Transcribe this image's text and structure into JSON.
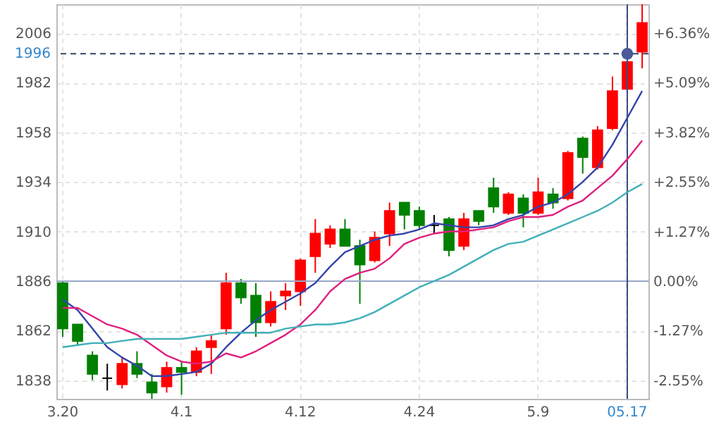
{
  "chart_data": {
    "type": "candlestick",
    "categories": [
      "3.20",
      null,
      null,
      null,
      null,
      null,
      null,
      null,
      "4.1",
      null,
      null,
      null,
      null,
      null,
      null,
      null,
      "4.12",
      null,
      null,
      null,
      null,
      null,
      null,
      null,
      "4.24",
      null,
      null,
      null,
      null,
      null,
      null,
      null,
      "5.9",
      null,
      null,
      null,
      null,
      null,
      "05.17",
      null
    ],
    "ylim": [
      1829,
      2020
    ],
    "yticks": [
      1838,
      1862,
      1886,
      1910,
      1934,
      1958,
      1982,
      2006
    ],
    "y2lim": [
      -3.02,
      7.1
    ],
    "y2ticks": [
      {
        "value": -2.55,
        "label": "-2.55%"
      },
      {
        "value": -1.27,
        "label": "-1.27%"
      },
      {
        "value": 0,
        "label": "0.00%"
      },
      {
        "value": 1.27,
        "label": "+1.27%"
      },
      {
        "value": 2.55,
        "label": "+2.55%"
      },
      {
        "value": 3.82,
        "label": "+3.82%"
      },
      {
        "value": 5.09,
        "label": "+5.09%"
      },
      {
        "value": 6.36,
        "label": "+6.36%"
      }
    ],
    "grid": true,
    "ref_lines": [
      {
        "axis": "y",
        "value": 1886,
        "color": "#99a8c8",
        "line_style": "solid"
      },
      {
        "axis": "y",
        "value": 1996,
        "label": "1996",
        "color": "#334466",
        "line_style": "dashed"
      },
      {
        "axis": "x",
        "value": "05.17",
        "color": "#3a4a88",
        "line_style": "solid"
      }
    ],
    "series": [
      {
        "type": "candlestick",
        "ohlc": [
          [
            1885,
            1886,
            1859,
            1863
          ],
          [
            1865,
            1865,
            1855,
            1857
          ],
          [
            1850,
            1852,
            1838,
            1841
          ],
          [
            1839,
            1846,
            1833,
            1839
          ],
          [
            1836,
            1849,
            1834,
            1846
          ],
          [
            1846,
            1852,
            1839,
            1841
          ],
          [
            1837,
            1841,
            1829,
            1832
          ],
          [
            1835,
            1847,
            1832,
            1844
          ],
          [
            1844,
            1847,
            1831,
            1842
          ],
          [
            1842,
            1854,
            1840,
            1852
          ],
          [
            1854,
            1860,
            1841,
            1857
          ],
          [
            1863,
            1890,
            1860,
            1885
          ],
          [
            1885,
            1887,
            1875,
            1878
          ],
          [
            1879,
            1885,
            1859,
            1866
          ],
          [
            1866,
            1881,
            1864,
            1876
          ],
          [
            1879,
            1885,
            1872,
            1881
          ],
          [
            1881,
            1897,
            1874,
            1896
          ],
          [
            1898,
            1916,
            1890,
            1909
          ],
          [
            1904,
            1913,
            1902,
            1911
          ],
          [
            1911,
            1916,
            1903,
            1903
          ],
          [
            1903,
            1906,
            1875,
            1894
          ],
          [
            1896,
            1910,
            1895,
            1907
          ],
          [
            1909,
            1924,
            1903,
            1920
          ],
          [
            1924,
            1924,
            1911,
            1918
          ],
          [
            1920,
            1922,
            1911,
            1913
          ],
          [
            1913,
            1918,
            1909,
            1913
          ],
          [
            1916,
            1917,
            1898,
            1901
          ],
          [
            1903,
            1919,
            1901,
            1916
          ],
          [
            1920,
            1920,
            1913,
            1915
          ],
          [
            1931,
            1936,
            1919,
            1922
          ],
          [
            1919,
            1929,
            1918,
            1928
          ],
          [
            1926,
            1928,
            1912,
            1919
          ],
          [
            1919,
            1936,
            1918,
            1929
          ],
          [
            1928,
            1931,
            1921,
            1924
          ],
          [
            1926,
            1949,
            1925,
            1948
          ],
          [
            1955,
            1956,
            1938,
            1946
          ],
          [
            1941,
            1961,
            1940,
            1959
          ],
          [
            1960,
            1985,
            1959,
            1978
          ],
          [
            1979,
            1994,
            1979,
            1992
          ],
          [
            1997,
            2020,
            1989,
            2011
          ]
        ],
        "colors": [
          "#008000",
          "#008000",
          "#008000",
          "#000000",
          "#ff0000",
          "#008000",
          "#008000",
          "#ff0000",
          "#008000",
          "#ff0000",
          "#ff0000",
          "#ff0000",
          "#008000",
          "#008000",
          "#ff0000",
          "#ff0000",
          "#ff0000",
          "#ff0000",
          "#ff0000",
          "#008000",
          "#008000",
          "#ff0000",
          "#ff0000",
          "#008000",
          "#008000",
          "#000000",
          "#008000",
          "#ff0000",
          "#008000",
          "#008000",
          "#ff0000",
          "#008000",
          "#ff0000",
          "#008000",
          "#ff0000",
          "#008000",
          "#ff0000",
          "#ff0000",
          "#ff0000",
          "#ff0000"
        ]
      },
      {
        "type": "line",
        "color": "#3344aa",
        "values": [
          1877,
          1872,
          1863,
          1854,
          1849,
          1845,
          1840,
          1840,
          1841,
          1842,
          1846,
          1854,
          1861,
          1867,
          1872,
          1876,
          1880,
          1885,
          1893,
          1900,
          1903,
          1906,
          1908,
          1909,
          1911,
          1914,
          1913,
          1912,
          1912,
          1913,
          1916,
          1918,
          1922,
          1924,
          1928,
          1934,
          1941,
          1952,
          1965,
          1978
        ]
      },
      {
        "type": "line",
        "color": "#e0207f",
        "values": [
          1873,
          1873,
          1869,
          1865,
          1863,
          1860,
          1855,
          1850,
          1847,
          1846,
          1847,
          1851,
          1849,
          1852,
          1856,
          1860,
          1865,
          1872,
          1881,
          1887,
          1890,
          1892,
          1897,
          1904,
          1907,
          1909,
          1910,
          1910,
          1911,
          1912,
          1915,
          1917,
          1917,
          1918,
          1922,
          1925,
          1931,
          1937,
          1945,
          1954
        ]
      },
      {
        "type": "line",
        "color": "#40b0b8",
        "values": [
          1854,
          1855,
          1856,
          1856,
          1857,
          1858,
          1858,
          1858,
          1858,
          1859,
          1860,
          1861,
          1861,
          1861,
          1861,
          1863,
          1864,
          1865,
          1865,
          1866,
          1868,
          1871,
          1875,
          1879,
          1883,
          1886,
          1889,
          1893,
          1897,
          1901,
          1904,
          1905,
          1908,
          1911,
          1914,
          1917,
          1920,
          1924,
          1929,
          1933
        ]
      },
      {
        "type": "scatter",
        "color": "#4a5a98",
        "x": [
          "05.17"
        ],
        "values": [
          1996
        ]
      }
    ]
  }
}
